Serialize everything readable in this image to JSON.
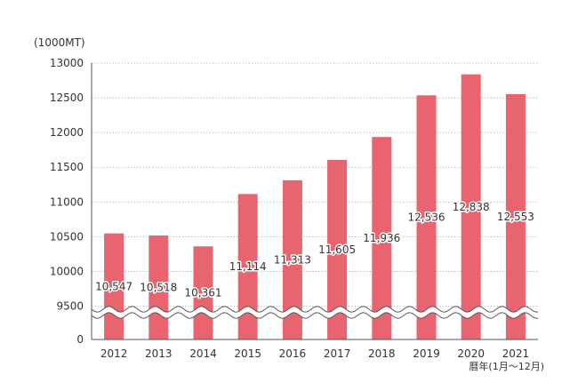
{
  "chart_data": {
    "type": "bar",
    "y_unit_label": "(1000MT)",
    "x_axis_label": "暦年(1月〜12月)",
    "categories": [
      "2012",
      "2013",
      "2014",
      "2015",
      "2016",
      "2017",
      "2018",
      "2019",
      "2020",
      "2021"
    ],
    "values": [
      10547,
      10518,
      10361,
      11114,
      11313,
      11605,
      11936,
      12536,
      12838,
      12553
    ],
    "value_labels": [
      "10,547",
      "10,518",
      "10,361",
      "11,114",
      "11,313",
      "11,605",
      "11,936",
      "12,536",
      "12,838",
      "12,553"
    ],
    "ylim": [
      9500,
      13000
    ],
    "y_ticks": [
      13000,
      12500,
      12000,
      11500,
      11000,
      10500,
      10000,
      9500
    ],
    "y_ticks_labels": [
      "13000",
      "12500",
      "12000",
      "11500",
      "11000",
      "10500",
      "10000",
      "9500"
    ],
    "y_zero_label": "0",
    "axis_break": true,
    "grid": "dotted-horizontal",
    "bar_color": "#e8646f"
  }
}
